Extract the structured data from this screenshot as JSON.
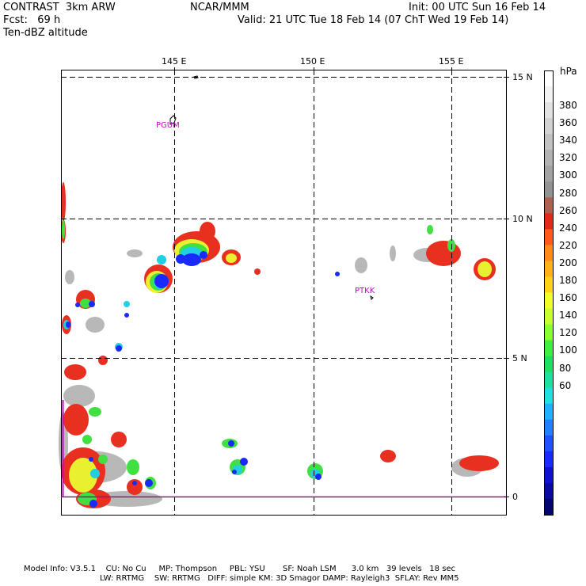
{
  "header": {
    "model": "CONTRAST  3km ARW",
    "center": "NCAR/MMM",
    "init": "Init: 00 UTC Sun 16 Feb 14",
    "fcst": "Fcst:   69 h",
    "valid": "Valid: 21 UTC Tue 18 Feb 14 (07 ChT Wed 19 Feb 14)",
    "field": "Ten-dBZ altitude"
  },
  "map": {
    "lon_labels": [
      "145 E",
      "150 E",
      "155 E"
    ],
    "lat_labels": [
      "15 N",
      "10 N",
      "5 N",
      "0"
    ],
    "stations": [
      {
        "id": "PGUM",
        "color": "#cc00cc"
      },
      {
        "id": "PTKK",
        "color": "#cc00cc"
      }
    ]
  },
  "colorbar": {
    "unit": "hPa",
    "labels": [
      "380",
      "360",
      "340",
      "320",
      "300",
      "280",
      "260",
      "240",
      "220",
      "200",
      "180",
      "160",
      "140",
      "120",
      "100",
      "80",
      "60"
    ],
    "colors": [
      "#ffffff",
      "#f2f2f2",
      "#e2e2e2",
      "#d2d2d2",
      "#c2c2c2",
      "#b2b2b2",
      "#a2a2a2",
      "#929292",
      "#b06050",
      "#e02a1a",
      "#ff5a1a",
      "#ff8a1a",
      "#ffb01a",
      "#ffd21a",
      "#f0ff2a",
      "#c8ff30",
      "#88ff30",
      "#40f040",
      "#20e060",
      "#20e0a0",
      "#20e0e0",
      "#20b0ff",
      "#2080ff",
      "#2050ff",
      "#1a2aff",
      "#1010d0",
      "#0a0aa0",
      "#050570"
    ]
  },
  "footer": {
    "line1": "Model Info: V3.5.1    CU: No Cu     MP: Thompson     PBL: YSU       SF: Noah LSM      3.0 km   39 levels   18 sec",
    "line2": "LW: RRTMG    SW: RRTMG   DIFF: simple KM: 3D Smagor DAMP: Rayleigh3  SFLAY: Rev MM5"
  }
}
